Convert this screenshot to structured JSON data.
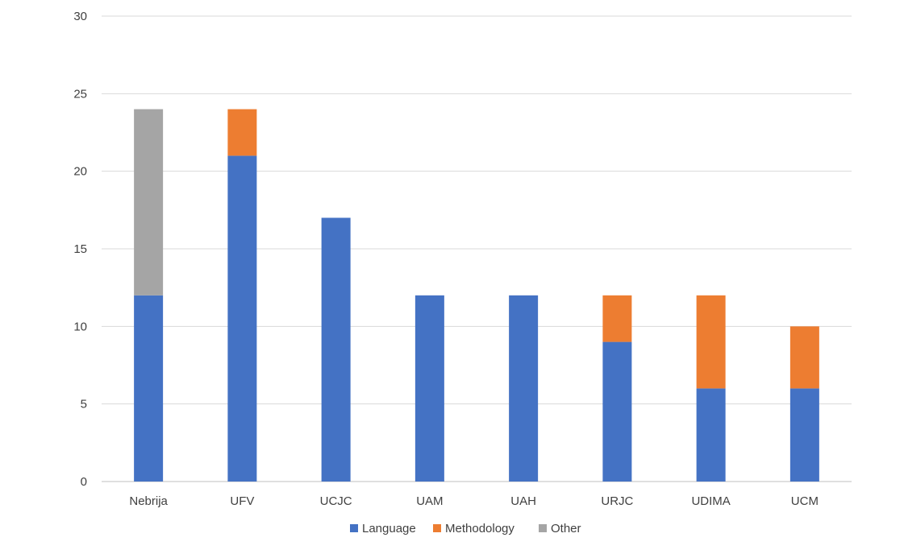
{
  "chart_data": {
    "type": "bar",
    "stacked": true,
    "title": "",
    "xlabel": "",
    "ylabel": "",
    "ylim": [
      0,
      30
    ],
    "yticks": [
      0,
      5,
      10,
      15,
      20,
      25,
      30
    ],
    "grid": true,
    "legend_position": "bottom",
    "categories": [
      "Nebrija",
      "UFV",
      "UCJC",
      "UAM",
      "UAH",
      "URJC",
      "UDIMA",
      "UCM"
    ],
    "series": [
      {
        "name": "Language",
        "color": "#4472C4",
        "values": [
          12,
          21,
          17,
          12,
          12,
          9,
          6,
          6
        ]
      },
      {
        "name": "Methodology",
        "color": "#ED7D31",
        "values": [
          0,
          3,
          0,
          0,
          0,
          3,
          6,
          4
        ]
      },
      {
        "name": "Other",
        "color": "#A5A5A5",
        "values": [
          12,
          0,
          0,
          0,
          0,
          0,
          0,
          0
        ]
      }
    ]
  }
}
